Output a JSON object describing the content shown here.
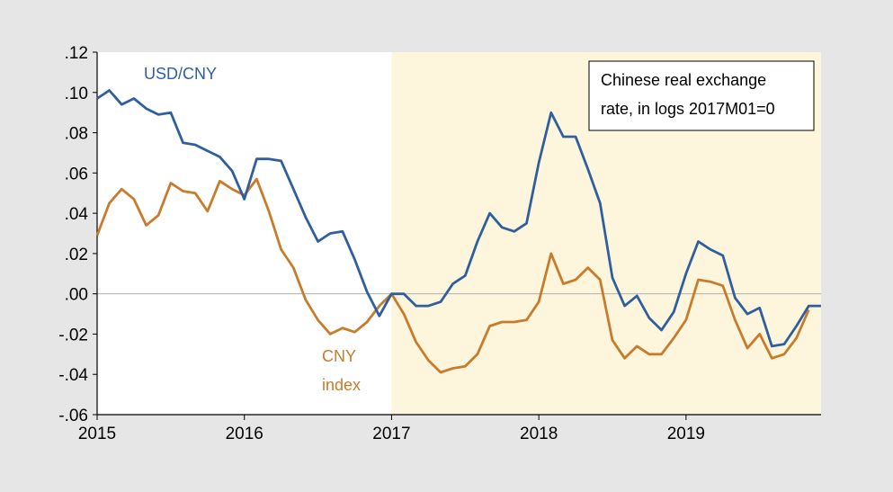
{
  "chart_data": {
    "type": "line",
    "title": "",
    "xlabel": "",
    "ylabel": "",
    "xlim": [
      2015,
      2019.917
    ],
    "ylim": [
      -0.06,
      0.12
    ],
    "y_ticks": [
      0.12,
      0.1,
      0.08,
      0.06,
      0.04,
      0.02,
      0.0,
      -0.02,
      -0.04,
      -0.06
    ],
    "y_tick_labels": [
      ".12",
      ".10",
      ".08",
      ".06",
      ".04",
      ".02",
      ".00",
      "-.02",
      "-.04",
      "-.06"
    ],
    "x_ticks": [
      2015,
      2016,
      2017,
      2018,
      2019
    ],
    "x_tick_labels": [
      "2015",
      "2016",
      "2017",
      "2018",
      "2019"
    ],
    "shaded_region": {
      "start": 2017,
      "end": 2019.917,
      "color": "#fdf6dc"
    },
    "zero_line": true,
    "grid": false,
    "legend": "none",
    "annotation_box": [
      "Chinese real exchange",
      "rate, in logs 2017M01=0"
    ],
    "series": [
      {
        "name": "USD/CNY",
        "label_lines": [
          "USD/CNY"
        ],
        "color": "#2f5f9e",
        "start": 2015,
        "step": 0.08333,
        "values": [
          0.097,
          0.101,
          0.094,
          0.097,
          0.092,
          0.089,
          0.09,
          0.075,
          0.074,
          0.071,
          0.068,
          0.061,
          0.047,
          0.067,
          0.067,
          0.066,
          0.052,
          0.038,
          0.026,
          0.03,
          0.031,
          0.017,
          0.001,
          -0.011,
          0.0,
          0.0,
          -0.006,
          -0.006,
          -0.004,
          0.005,
          0.009,
          0.026,
          0.04,
          0.033,
          0.031,
          0.035,
          0.065,
          0.09,
          0.078,
          0.078,
          0.062,
          0.045,
          0.008,
          -0.006,
          -0.001,
          -0.012,
          -0.018,
          -0.009,
          0.01,
          0.026,
          0.022,
          0.019,
          -0.002,
          -0.01,
          -0.007,
          -0.026,
          -0.025,
          -0.016,
          -0.006,
          -0.006
        ]
      },
      {
        "name": "CNY index",
        "label_lines": [
          "CNY",
          "index"
        ],
        "color": "#c97b2c",
        "start": 2015,
        "step": 0.08333,
        "values": [
          0.029,
          0.045,
          0.052,
          0.047,
          0.034,
          0.039,
          0.055,
          0.051,
          0.05,
          0.041,
          0.056,
          0.052,
          0.049,
          0.057,
          0.041,
          0.022,
          0.013,
          -0.003,
          -0.013,
          -0.02,
          -0.017,
          -0.019,
          -0.014,
          -0.006,
          0.0,
          -0.01,
          -0.024,
          -0.033,
          -0.039,
          -0.037,
          -0.036,
          -0.03,
          -0.016,
          -0.014,
          -0.014,
          -0.013,
          -0.004,
          0.02,
          0.005,
          0.007,
          0.013,
          0.007,
          -0.023,
          -0.032,
          -0.026,
          -0.03,
          -0.03,
          -0.022,
          -0.013,
          0.007,
          0.006,
          0.004,
          -0.013,
          -0.027,
          -0.02,
          -0.032,
          -0.03,
          -0.022,
          -0.008
        ]
      }
    ]
  }
}
